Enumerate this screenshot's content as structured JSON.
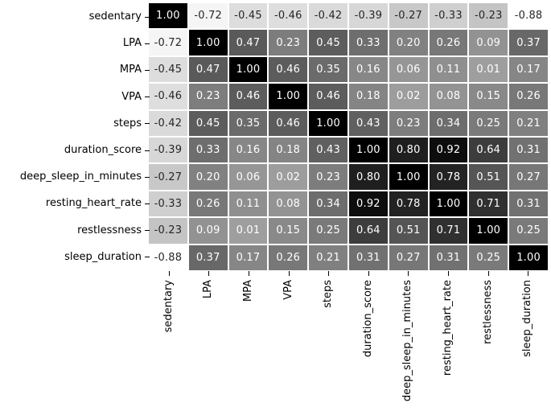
{
  "chart_data": {
    "type": "heatmap",
    "title": "",
    "xlabel": "",
    "ylabel": "",
    "legend": "none",
    "grid": "white gridlines between cells",
    "x_tick_rotation": 90,
    "labels": [
      "sedentary",
      "LPA",
      "MPA",
      "VPA",
      "steps",
      "duration_score",
      "deep_sleep_in_minutes",
      "resting_heart_rate",
      "restlessness",
      "sleep_duration"
    ],
    "matrix": [
      [
        1.0,
        -0.72,
        -0.45,
        -0.46,
        -0.42,
        -0.39,
        -0.27,
        -0.33,
        -0.23,
        -0.88
      ],
      [
        -0.72,
        1.0,
        0.47,
        0.23,
        0.45,
        0.33,
        0.2,
        0.26,
        0.09,
        0.37
      ],
      [
        -0.45,
        0.47,
        1.0,
        0.46,
        0.35,
        0.16,
        0.06,
        0.11,
        0.01,
        0.17
      ],
      [
        -0.46,
        0.23,
        0.46,
        1.0,
        0.46,
        0.18,
        0.02,
        0.08,
        0.15,
        0.26
      ],
      [
        -0.42,
        0.45,
        0.35,
        0.46,
        1.0,
        0.43,
        0.23,
        0.34,
        0.25,
        0.21
      ],
      [
        -0.39,
        0.33,
        0.16,
        0.18,
        0.43,
        1.0,
        0.8,
        0.92,
        0.64,
        0.31
      ],
      [
        -0.27,
        0.2,
        0.06,
        0.02,
        0.23,
        0.8,
        1.0,
        0.78,
        0.51,
        0.27
      ],
      [
        -0.33,
        0.26,
        0.11,
        0.08,
        0.34,
        0.92,
        0.78,
        1.0,
        0.71,
        0.31
      ],
      [
        -0.23,
        0.09,
        0.01,
        0.15,
        0.25,
        0.64,
        0.51,
        0.71,
        1.0,
        0.25
      ],
      [
        -0.88,
        0.37,
        0.17,
        0.26,
        0.21,
        0.31,
        0.27,
        0.31,
        0.25,
        1.0
      ]
    ],
    "value_format": "2-decimal",
    "vmin": -0.88,
    "vmax": 1.0,
    "colormap": {
      "name": "Greys",
      "stops": [
        [
          0.0,
          "#ffffff"
        ],
        [
          0.125,
          "#f0f0f0"
        ],
        [
          0.25,
          "#d9d9d9"
        ],
        [
          0.375,
          "#bdbdbd"
        ],
        [
          0.5,
          "#969696"
        ],
        [
          0.625,
          "#737373"
        ],
        [
          0.75,
          "#525252"
        ],
        [
          0.875,
          "#252525"
        ],
        [
          1.0,
          "#000000"
        ]
      ]
    },
    "annotation_colors": {
      "light_text": "#ffffff",
      "dark_text": "#262626",
      "luminance_threshold": 0.408
    },
    "axis_label_color": "#000000",
    "tick_color": "#000000",
    "background": "#ffffff",
    "gridline_color": "#ffffff"
  }
}
